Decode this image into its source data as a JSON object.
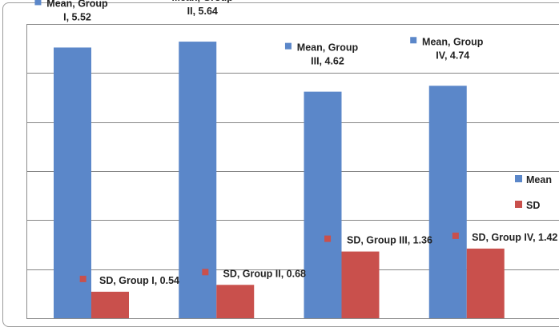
{
  "chart_data": {
    "type": "bar",
    "categories": [
      "Group I",
      "Group II",
      "Group III",
      "Group IV"
    ],
    "series": [
      {
        "name": "Mean",
        "color": "#5b87c9",
        "values": [
          5.52,
          5.64,
          4.62,
          4.74
        ],
        "labels": [
          [
            "Mean, Group",
            "I, 5.52"
          ],
          [
            "Mean, Group",
            "II, 5.64"
          ],
          [
            "Mean, Group",
            "III, 4.62"
          ],
          [
            "Mean, Group",
            "IV, 4.74"
          ]
        ]
      },
      {
        "name": "SD",
        "color": "#c9504c",
        "values": [
          0.54,
          0.68,
          1.36,
          1.42
        ],
        "labels": [
          [
            "SD, Group I, 0.54"
          ],
          [
            "SD, Group II, 0.68"
          ],
          [
            "SD, Group III, 1.36"
          ],
          [
            "SD, Group IV, 1.42"
          ]
        ]
      }
    ],
    "ylim": [
      0,
      6
    ],
    "grid": true,
    "legend": "right"
  }
}
